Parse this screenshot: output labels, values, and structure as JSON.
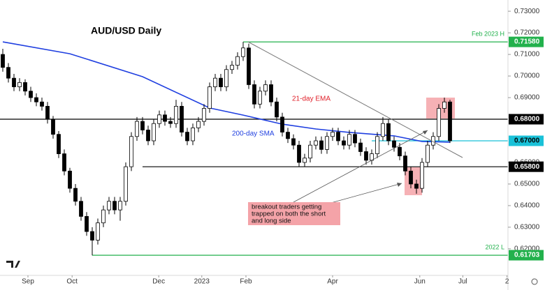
{
  "chart_data": {
    "type": "candlestick",
    "title": "AUD/USD Daily",
    "xlim": [
      -0.5,
      90.375
    ],
    "ylim": [
      0.6077,
      0.7352
    ],
    "xticks": [
      {
        "value": 4.5,
        "label": "Sep"
      },
      {
        "value": 12.4,
        "label": "Oct"
      },
      {
        "value": 27.9,
        "label": "Dec"
      },
      {
        "value": 35.6,
        "label": "2023"
      },
      {
        "value": 43.5,
        "label": "Feb"
      },
      {
        "value": 59,
        "label": "Apr"
      },
      {
        "value": 74.6,
        "label": "Jun"
      },
      {
        "value": 82.3,
        "label": "Jul"
      },
      {
        "value": 90.2,
        "label": "2"
      }
    ],
    "yticks": [
      {
        "value": 0.73,
        "label": "0.73000"
      },
      {
        "value": 0.72,
        "label": "0.72000"
      },
      {
        "value": 0.71,
        "label": "0.71000"
      },
      {
        "value": 0.7,
        "label": "0.70000"
      },
      {
        "value": 0.69,
        "label": "0.69000"
      },
      {
        "value": 0.66,
        "label": "0.66000"
      },
      {
        "value": 0.65,
        "label": "0.65000"
      },
      {
        "value": 0.64,
        "label": "0.64000"
      },
      {
        "value": 0.63,
        "label": "0.63000"
      },
      {
        "value": 0.62,
        "label": "0.62000"
      }
    ],
    "up_color": "#ffffff",
    "down_color": "#000000",
    "wick_color": "#000000",
    "candles": [
      [
        0.71,
        0.7126,
        0.702,
        0.704
      ],
      [
        0.704,
        0.706,
        0.697,
        0.699
      ],
      [
        0.699,
        0.701,
        0.693,
        0.695
      ],
      [
        0.695,
        0.699,
        0.693,
        0.697
      ],
      [
        0.697,
        0.6985,
        0.691,
        0.693
      ],
      [
        0.693,
        0.695,
        0.688,
        0.69
      ],
      [
        0.69,
        0.692,
        0.686,
        0.688
      ],
      [
        0.688,
        0.69,
        0.684,
        0.686
      ],
      [
        0.686,
        0.688,
        0.678,
        0.68
      ],
      [
        0.68,
        0.6815,
        0.671,
        0.673
      ],
      [
        0.673,
        0.6745,
        0.662,
        0.664
      ],
      [
        0.664,
        0.666,
        0.654,
        0.656
      ],
      [
        0.656,
        0.6575,
        0.646,
        0.648
      ],
      [
        0.648,
        0.65,
        0.64,
        0.642
      ],
      [
        0.642,
        0.644,
        0.633,
        0.635
      ],
      [
        0.635,
        0.637,
        0.626,
        0.628
      ],
      [
        0.628,
        0.63,
        0.617,
        0.624
      ],
      [
        0.624,
        0.634,
        0.622,
        0.632
      ],
      [
        0.632,
        0.64,
        0.63,
        0.638
      ],
      [
        0.638,
        0.644,
        0.636,
        0.642
      ],
      [
        0.642,
        0.644,
        0.636,
        0.638
      ],
      [
        0.638,
        0.644,
        0.633,
        0.642
      ],
      [
        0.642,
        0.66,
        0.64,
        0.658
      ],
      [
        0.658,
        0.674,
        0.656,
        0.672
      ],
      [
        0.672,
        0.681,
        0.67,
        0.679
      ],
      [
        0.679,
        0.681,
        0.673,
        0.675
      ],
      [
        0.675,
        0.677,
        0.668,
        0.67
      ],
      [
        0.67,
        0.68,
        0.668,
        0.678
      ],
      [
        0.678,
        0.684,
        0.676,
        0.682
      ],
      [
        0.682,
        0.684,
        0.677,
        0.679
      ],
      [
        0.679,
        0.681,
        0.676,
        0.678
      ],
      [
        0.678,
        0.689,
        0.676,
        0.686
      ],
      [
        0.686,
        0.688,
        0.672,
        0.674
      ],
      [
        0.674,
        0.676,
        0.668,
        0.67
      ],
      [
        0.67,
        0.678,
        0.668,
        0.676
      ],
      [
        0.676,
        0.681,
        0.674,
        0.679
      ],
      [
        0.679,
        0.687,
        0.677,
        0.685
      ],
      [
        0.685,
        0.697,
        0.683,
        0.695
      ],
      [
        0.695,
        0.701,
        0.693,
        0.699
      ],
      [
        0.699,
        0.701,
        0.693,
        0.695
      ],
      [
        0.695,
        0.705,
        0.693,
        0.703
      ],
      [
        0.703,
        0.707,
        0.701,
        0.705
      ],
      [
        0.705,
        0.711,
        0.703,
        0.709
      ],
      [
        0.709,
        0.7158,
        0.707,
        0.713
      ],
      [
        0.713,
        0.715,
        0.694,
        0.696
      ],
      [
        0.696,
        0.698,
        0.685,
        0.687
      ],
      [
        0.687,
        0.695,
        0.685,
        0.693
      ],
      [
        0.693,
        0.698,
        0.691,
        0.696
      ],
      [
        0.696,
        0.698,
        0.686,
        0.688
      ],
      [
        0.688,
        0.69,
        0.679,
        0.681
      ],
      [
        0.681,
        0.683,
        0.672,
        0.674
      ],
      [
        0.674,
        0.676,
        0.669,
        0.671
      ],
      [
        0.671,
        0.673,
        0.666,
        0.668
      ],
      [
        0.668,
        0.67,
        0.658,
        0.66
      ],
      [
        0.66,
        0.664,
        0.658,
        0.662
      ],
      [
        0.662,
        0.67,
        0.66,
        0.668
      ],
      [
        0.668,
        0.672,
        0.666,
        0.67
      ],
      [
        0.67,
        0.672,
        0.664,
        0.666
      ],
      [
        0.666,
        0.674,
        0.664,
        0.672
      ],
      [
        0.672,
        0.676,
        0.67,
        0.674
      ],
      [
        0.674,
        0.676,
        0.668,
        0.67
      ],
      [
        0.67,
        0.672,
        0.666,
        0.668
      ],
      [
        0.668,
        0.675,
        0.666,
        0.673
      ],
      [
        0.673,
        0.675,
        0.667,
        0.669
      ],
      [
        0.669,
        0.671,
        0.663,
        0.665
      ],
      [
        0.665,
        0.667,
        0.659,
        0.661
      ],
      [
        0.661,
        0.666,
        0.659,
        0.664
      ],
      [
        0.664,
        0.674,
        0.662,
        0.672
      ],
      [
        0.672,
        0.681,
        0.67,
        0.678
      ],
      [
        0.678,
        0.68,
        0.668,
        0.67
      ],
      [
        0.67,
        0.672,
        0.665,
        0.667
      ],
      [
        0.667,
        0.669,
        0.661,
        0.663
      ],
      [
        0.663,
        0.665,
        0.654,
        0.656
      ],
      [
        0.656,
        0.658,
        0.648,
        0.65
      ],
      [
        0.65,
        0.652,
        0.6455,
        0.648
      ],
      [
        0.648,
        0.662,
        0.646,
        0.66
      ],
      [
        0.66,
        0.67,
        0.658,
        0.668
      ],
      [
        0.668,
        0.674,
        0.666,
        0.672
      ],
      [
        0.672,
        0.687,
        0.67,
        0.685
      ],
      [
        0.685,
        0.69,
        0.683,
        0.688
      ],
      [
        0.688,
        0.689,
        0.669,
        0.67
      ]
    ],
    "sma": {
      "name": "200-day SMA",
      "color": "#1f3fe0",
      "x": [
        0,
        12,
        25,
        37,
        43,
        50,
        56,
        62,
        70,
        75,
        80
      ],
      "values": [
        0.7158,
        0.7103,
        0.6997,
        0.6852,
        0.6819,
        0.6777,
        0.6755,
        0.6739,
        0.6723,
        0.6697,
        0.6694
      ]
    },
    "ema_label": "21-day EMA",
    "levels": [
      {
        "value": 0.7158,
        "label": "0.71580",
        "note": "Feb 2023 H",
        "start": 43,
        "color": "#22b14c",
        "label_color": "#ffffff"
      },
      {
        "value": 0.68,
        "label": "0.68000",
        "start": -0.5,
        "color": "#000000",
        "label_color": "#ffffff"
      },
      {
        "value": 0.67,
        "label": "0.67000",
        "start": 66,
        "color": "#19c1d8",
        "label_color": "#000000"
      },
      {
        "value": 0.658,
        "label": "0.65800",
        "start": 25,
        "color": "#000000",
        "label_color": "#ffffff"
      },
      {
        "value": 0.61703,
        "label": "0.61703",
        "note": "2022 L",
        "start": 16,
        "color": "#22b14c",
        "label_color": "#ffffff"
      }
    ],
    "callout": [
      "breakout traders getting",
      "trapped on both the short",
      "and long side"
    ]
  }
}
